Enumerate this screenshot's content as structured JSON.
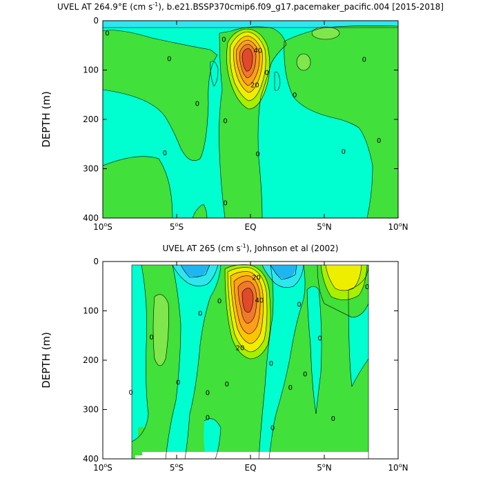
{
  "chart_data": [
    {
      "type": "contour",
      "title": "UVEL AT 264.9°E (cm s",
      "title_sup": "-1",
      "title_rest": "), b.e21.BSSP370cmip6.f09_g17.pacemaker_pacific.004 [2015-2018]",
      "ylabel": "DEPTH (m)",
      "xlim": [
        -10,
        10
      ],
      "ylim": [
        0,
        400
      ],
      "x_ticks": [
        {
          "value": -10,
          "label": "10",
          "suffix": "S"
        },
        {
          "value": -5,
          "label": "5",
          "suffix": "S"
        },
        {
          "value": 0,
          "label": "EQ",
          "suffix": ""
        },
        {
          "value": 5,
          "label": "5",
          "suffix": "N"
        },
        {
          "value": 10,
          "label": "10",
          "suffix": "N"
        }
      ],
      "y_ticks": [
        0,
        100,
        200,
        300,
        400
      ],
      "contour_labels": [
        {
          "text": "0",
          "x": -9.7,
          "y": 25
        },
        {
          "text": "0",
          "x": -5.5,
          "y": 77
        },
        {
          "text": "0",
          "x": -3.6,
          "y": 168
        },
        {
          "text": "0",
          "x": -5.8,
          "y": 268
        },
        {
          "text": "0",
          "x": -1.8,
          "y": 38
        },
        {
          "text": "0",
          "x": -1.7,
          "y": 203
        },
        {
          "text": "0",
          "x": -1.7,
          "y": 369
        },
        {
          "text": "40",
          "x": 0.5,
          "y": 60
        },
        {
          "text": "20",
          "x": 0.3,
          "y": 130
        },
        {
          "text": "0",
          "x": 1.1,
          "y": 105
        },
        {
          "text": "0",
          "x": 0.5,
          "y": 270
        },
        {
          "text": "0",
          "x": 3.0,
          "y": 150
        },
        {
          "text": "0",
          "x": 6.3,
          "y": 265
        },
        {
          "text": "0",
          "x": 7.7,
          "y": 78
        },
        {
          "text": "0",
          "x": 8.7,
          "y": 243
        }
      ],
      "peak": {
        "x": -0.1,
        "y": 72
      }
    },
    {
      "type": "contour",
      "title": "UVEL AT 265 (cm s",
      "title_sup": "-1",
      "title_rest": "), Johnson et al (2002)",
      "ylabel": "DEPTH (m)",
      "xlim": [
        -10,
        10
      ],
      "ylim": [
        0,
        400
      ],
      "x_ticks": [
        {
          "value": -10,
          "label": "10",
          "suffix": "S"
        },
        {
          "value": -5,
          "label": "5",
          "suffix": "S"
        },
        {
          "value": 0,
          "label": "EQ",
          "suffix": ""
        },
        {
          "value": 5,
          "label": "5",
          "suffix": "N"
        },
        {
          "value": 10,
          "label": "10",
          "suffix": "N"
        }
      ],
      "y_ticks": [
        0,
        100,
        200,
        300,
        400
      ],
      "contour_labels": [
        {
          "text": "0",
          "x": -8.1,
          "y": 265
        },
        {
          "text": "0",
          "x": -6.7,
          "y": 153
        },
        {
          "text": "0",
          "x": -4.9,
          "y": 245
        },
        {
          "text": "0",
          "x": -3.4,
          "y": 105
        },
        {
          "text": "0",
          "x": -2.9,
          "y": 266
        },
        {
          "text": "0",
          "x": -2.9,
          "y": 316
        },
        {
          "text": "0",
          "x": -2.1,
          "y": 80
        },
        {
          "text": "0",
          "x": -1.6,
          "y": 248
        },
        {
          "text": "20",
          "x": 0.4,
          "y": 32
        },
        {
          "text": "40",
          "x": 0.6,
          "y": 78
        },
        {
          "text": "20",
          "x": -0.7,
          "y": 175
        },
        {
          "text": "0",
          "x": 1.4,
          "y": 206
        },
        {
          "text": "0",
          "x": 1.5,
          "y": 337
        },
        {
          "text": "0",
          "x": 2.7,
          "y": 255
        },
        {
          "text": "0",
          "x": 3.3,
          "y": 87
        },
        {
          "text": "0",
          "x": 3.7,
          "y": 228
        },
        {
          "text": "0",
          "x": 4.7,
          "y": 155
        },
        {
          "text": "0",
          "x": 5.6,
          "y": 318
        },
        {
          "text": "0",
          "x": 7.9,
          "y": 51
        }
      ],
      "peak": {
        "x": -0.2,
        "y": 68
      }
    }
  ]
}
